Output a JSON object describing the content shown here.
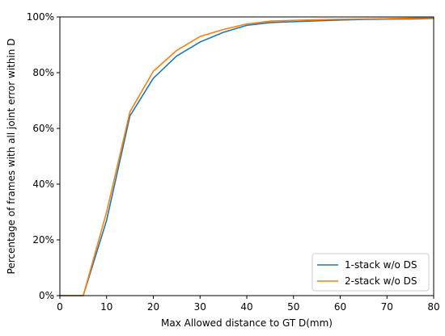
{
  "chart_data": {
    "type": "line",
    "title": "",
    "xlabel": "Max Allowed distance to GT D(mm)",
    "ylabel": "Percentage of frames with all joint error within D",
    "xlim": [
      0,
      80
    ],
    "ylim": [
      0,
      100
    ],
    "x_ticks": [
      0,
      10,
      20,
      30,
      40,
      50,
      60,
      70,
      80
    ],
    "x_tick_labels": [
      "0",
      "10",
      "20",
      "30",
      "40",
      "50",
      "60",
      "70",
      "80"
    ],
    "y_ticks": [
      0,
      20,
      40,
      60,
      80,
      100
    ],
    "y_tick_labels": [
      "0%",
      "20%",
      "40%",
      "60%",
      "80%",
      "100%"
    ],
    "grid": false,
    "legend_position": "bottom-right",
    "series": [
      {
        "name": "1-stack w/o DS",
        "color": "#1f77b4",
        "x": [
          0,
          5,
          10,
          15,
          20,
          25,
          30,
          35,
          40,
          45,
          50,
          55,
          60,
          65,
          70,
          75,
          80
        ],
        "y": [
          0,
          0,
          27,
          64.5,
          78,
          86,
          91,
          94.5,
          97,
          98,
          98.3,
          98.6,
          98.9,
          99.1,
          99.2,
          99.3,
          99.5
        ]
      },
      {
        "name": "2-stack w/o DS",
        "color": "#ff7f0e",
        "x": [
          0,
          5,
          10,
          15,
          20,
          25,
          30,
          35,
          40,
          45,
          50,
          55,
          60,
          65,
          70,
          75,
          80
        ],
        "y": [
          0,
          0,
          30,
          66,
          80.5,
          88,
          93,
          95.5,
          97.5,
          98.5,
          98.8,
          99,
          99.2,
          99.3,
          99.4,
          99.6,
          99.8
        ]
      }
    ]
  }
}
